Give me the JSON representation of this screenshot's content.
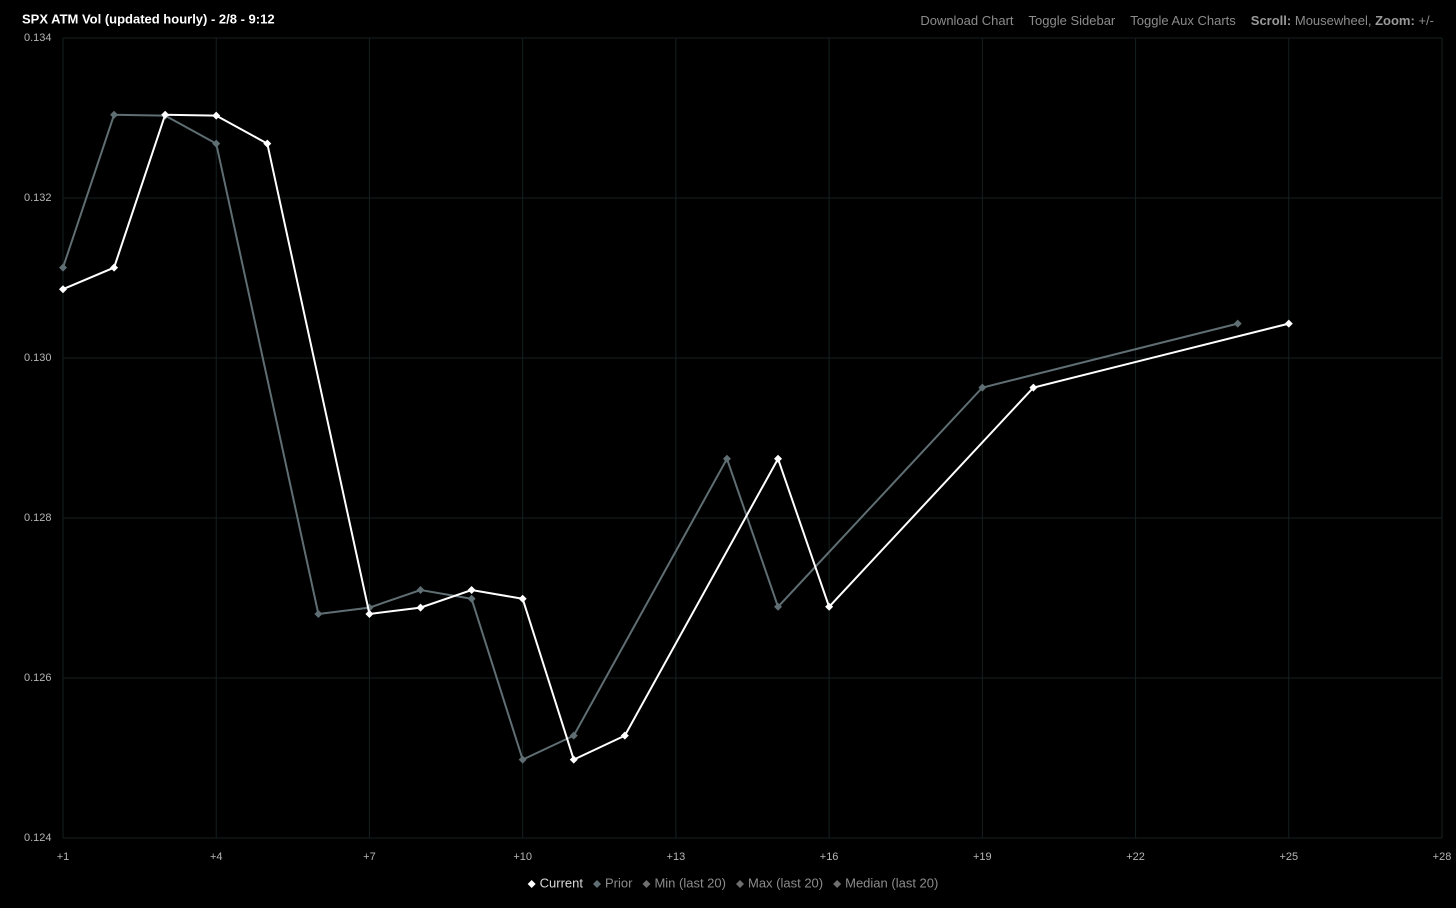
{
  "toolbar": {
    "download": "Download Chart",
    "sidebar": "Toggle Sidebar",
    "aux": "Toggle Aux Charts",
    "scroll_label": "Scroll:",
    "scroll_value": "Mousewheel,",
    "zoom_label": "Zoom:",
    "zoom_value": "+/-"
  },
  "chart_data": {
    "type": "line",
    "title": "SPX ATM Vol (updated hourly) - 2/8 - 9:12",
    "xlim": [
      1,
      28
    ],
    "xticks": [
      {
        "value": 1,
        "label": "+1"
      },
      {
        "value": 4,
        "label": "+4"
      },
      {
        "value": 7,
        "label": "+7"
      },
      {
        "value": 10,
        "label": "+10"
      },
      {
        "value": 13,
        "label": "+13"
      },
      {
        "value": 16,
        "label": "+16"
      },
      {
        "value": 19,
        "label": "+19"
      },
      {
        "value": 22,
        "label": "+22"
      },
      {
        "value": 25,
        "label": "+25"
      },
      {
        "value": 28,
        "label": "+28"
      }
    ],
    "ylim": [
      0.124,
      0.134
    ],
    "yticks": [
      0.124,
      0.126,
      0.128,
      {
        "value": 0.13,
        "label": "0.130"
      },
      0.132,
      0.134
    ],
    "grid": true,
    "legend": "bottom",
    "series": [
      {
        "name": "Current",
        "color": "#ffffff",
        "x": [
          1,
          2,
          3,
          4,
          5,
          7,
          8,
          9,
          10,
          11,
          12,
          15,
          16,
          20,
          25
        ],
        "values": [
          0.13086,
          0.13113,
          0.13304,
          0.13303,
          0.13268,
          0.1268,
          0.12688,
          0.1271,
          0.12699,
          0.12498,
          0.12528,
          0.12874,
          0.12689,
          0.12963,
          0.13043
        ]
      },
      {
        "name": "Prior",
        "color": "#5f6e73",
        "x": [
          1,
          2,
          3,
          4,
          6,
          7,
          8,
          9,
          10,
          11,
          14,
          15,
          19,
          24
        ],
        "values": [
          0.13113,
          0.13304,
          0.13303,
          0.13268,
          0.1268,
          0.12688,
          0.1271,
          0.12699,
          0.12498,
          0.12528,
          0.12874,
          0.12689,
          0.12963,
          0.13043
        ]
      },
      {
        "name": "Min (last 20)",
        "color": "#6e6e6e",
        "x": [],
        "values": []
      },
      {
        "name": "Max (last 20)",
        "color": "#6e6e6e",
        "x": [],
        "values": []
      },
      {
        "name": "Median (last 20)",
        "color": "#6e6e6e",
        "x": [],
        "values": []
      }
    ]
  }
}
